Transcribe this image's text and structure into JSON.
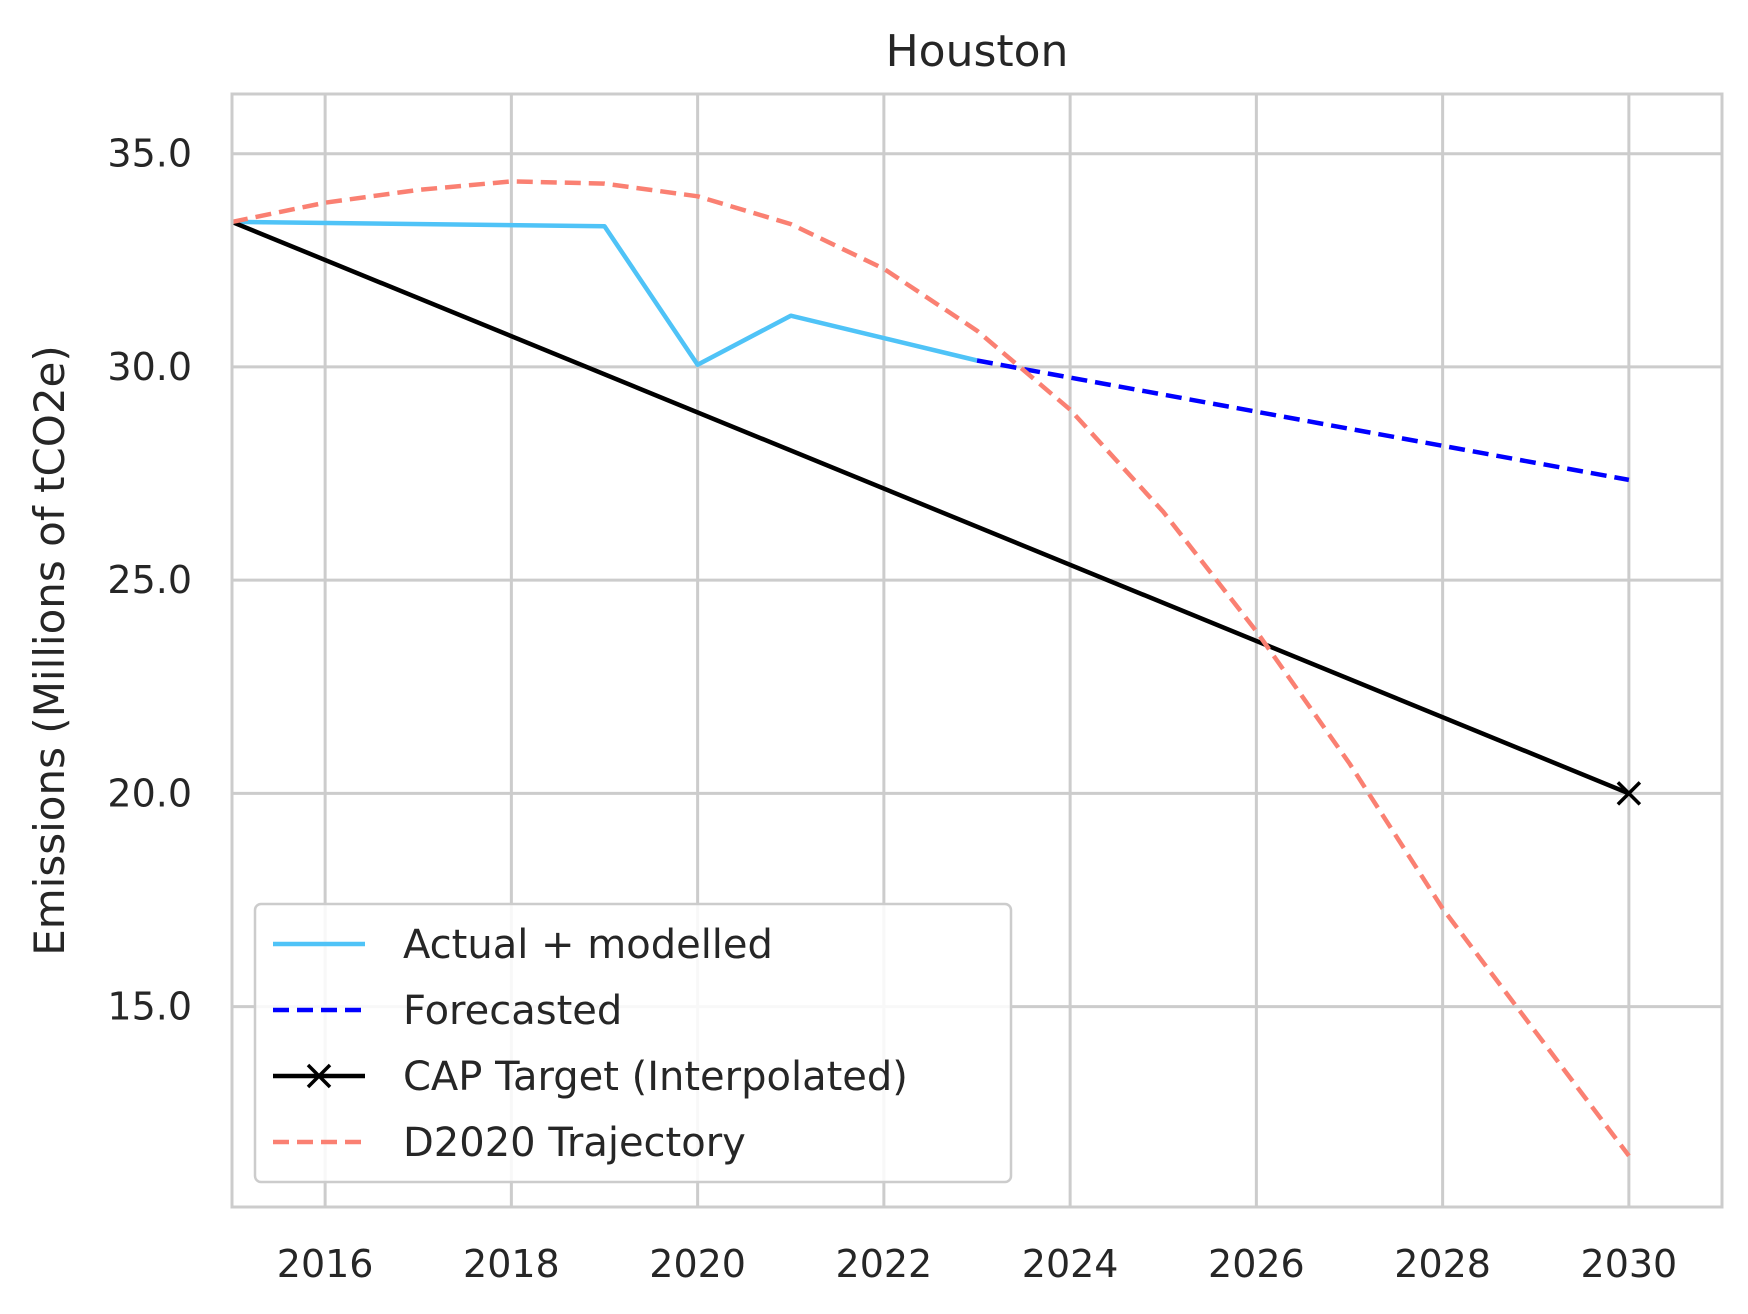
{
  "chart_data": {
    "type": "line",
    "title": "Houston",
    "xlabel": "",
    "ylabel": "Emissions (Millions of tCO2e)",
    "xlim": [
      2015,
      2031
    ],
    "ylim": [
      10.3,
      36.4
    ],
    "xticks": [
      2016,
      2018,
      2020,
      2022,
      2024,
      2026,
      2028,
      2030
    ],
    "xtick_labels": [
      "2016",
      "2018",
      "2020",
      "2022",
      "2024",
      "2026",
      "2028",
      "2030"
    ],
    "yticks": [
      15,
      20,
      25,
      30,
      35
    ],
    "ytick_labels": [
      "15.0",
      "20.0",
      "25.0",
      "30.0",
      "35.0"
    ],
    "grid": true,
    "legend_position": "lower-left",
    "series": [
      {
        "name": "Actual + modelled",
        "color": "#4fc3f7",
        "style": "solid",
        "marker": "none",
        "x": [
          2015,
          2019,
          2020,
          2021,
          2023
        ],
        "y": [
          33.4,
          33.3,
          30.05,
          31.2,
          30.15
        ]
      },
      {
        "name": "Forecasted",
        "color": "#0000ff",
        "style": "dashed",
        "marker": "none",
        "x": [
          2023,
          2024,
          2025,
          2026,
          2027,
          2028,
          2029,
          2030
        ],
        "y": [
          30.15,
          29.75,
          29.35,
          28.95,
          28.55,
          28.15,
          27.75,
          27.35
        ]
      },
      {
        "name": "CAP Target (Interpolated)",
        "color": "#000000",
        "style": "solid",
        "marker": "x",
        "x": [
          2015,
          2030
        ],
        "y": [
          33.4,
          20.0
        ]
      },
      {
        "name": "D2020 Trajectory",
        "color": "#fa8072",
        "style": "dashed",
        "marker": "none",
        "x": [
          2015,
          2016,
          2017,
          2018,
          2019,
          2020,
          2021,
          2022,
          2023,
          2024,
          2025,
          2026,
          2027,
          2028,
          2029,
          2030
        ],
        "y": [
          33.4,
          33.85,
          34.15,
          34.35,
          34.3,
          34.0,
          33.35,
          32.3,
          30.85,
          29.0,
          26.6,
          23.8,
          20.7,
          17.3,
          14.4,
          11.5
        ]
      }
    ]
  }
}
